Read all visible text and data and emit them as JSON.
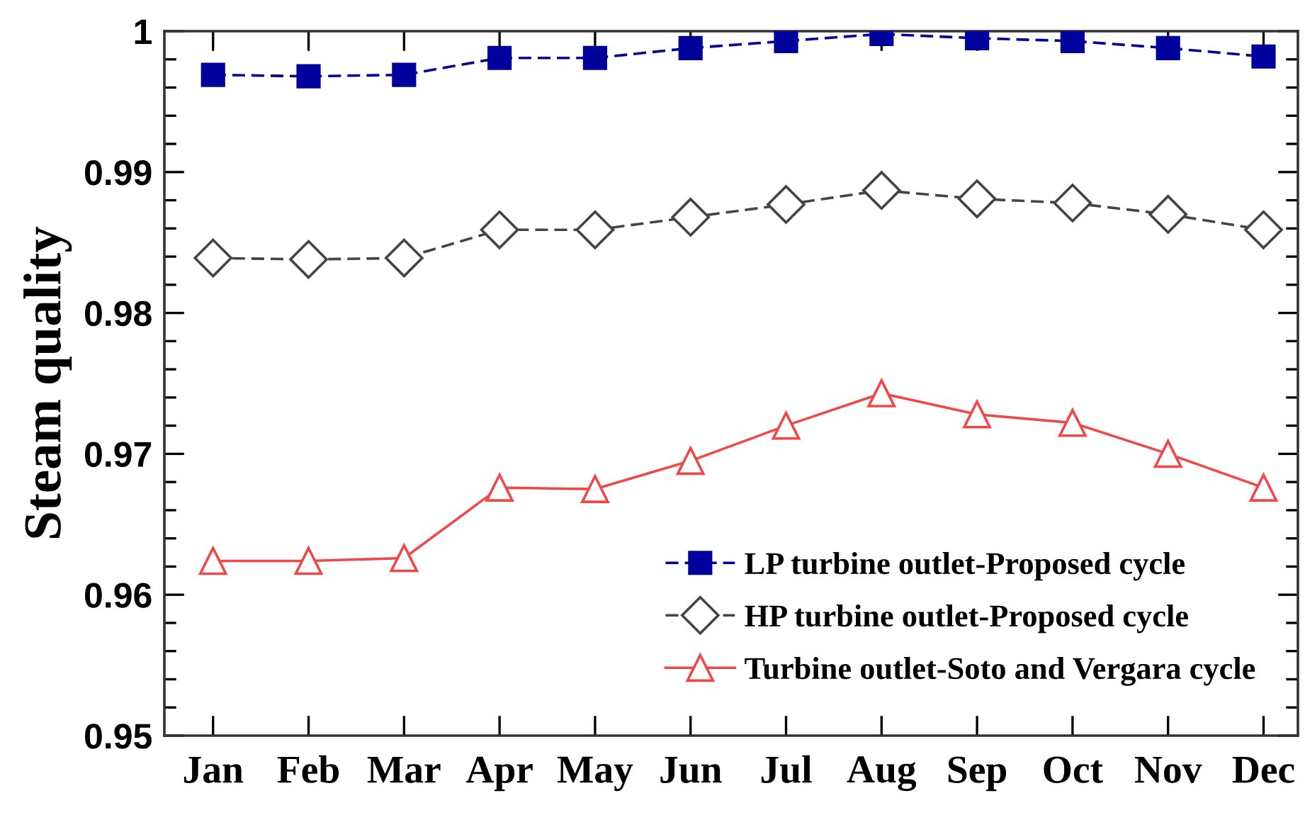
{
  "chart_data": {
    "type": "line",
    "ylabel": "Steam quality",
    "categories": [
      "Jan",
      "Feb",
      "Mar",
      "Apr",
      "May",
      "Jun",
      "Jul",
      "Aug",
      "Sep",
      "Oct",
      "Nov",
      "Dec"
    ],
    "ylim": [
      0.95,
      1
    ],
    "yticks": [
      0.95,
      {
        "value": 0.952,
        "label": null
      },
      {
        "value": 0.954,
        "label": null
      },
      {
        "value": 0.956,
        "label": null
      },
      {
        "value": 0.958,
        "label": null
      },
      0.96,
      {
        "value": 0.962,
        "label": null
      },
      {
        "value": 0.964,
        "label": null
      },
      {
        "value": 0.966,
        "label": null
      },
      {
        "value": 0.968,
        "label": null
      },
      0.97,
      {
        "value": 0.972,
        "label": null
      },
      {
        "value": 0.974,
        "label": null
      },
      {
        "value": 0.976,
        "label": null
      },
      {
        "value": 0.978,
        "label": null
      },
      0.98,
      {
        "value": 0.982,
        "label": null
      },
      {
        "value": 0.984,
        "label": null
      },
      {
        "value": 0.986,
        "label": null
      },
      {
        "value": 0.988,
        "label": null
      },
      0.99,
      {
        "value": 0.992,
        "label": null
      },
      {
        "value": 0.994,
        "label": null
      },
      {
        "value": 0.996,
        "label": null
      },
      {
        "value": 0.998,
        "label": null
      },
      1
    ],
    "legend": "bottom right",
    "series": [
      {
        "name": "LP turbine outlet-Proposed cycle",
        "color": "#00009c",
        "marker": "square",
        "line_style": "dashed",
        "values": [
          0.9969,
          0.9968,
          0.9969,
          0.9981,
          0.9981,
          0.9988,
          0.9993,
          0.9998,
          0.9995,
          0.9993,
          0.9988,
          0.9982
        ]
      },
      {
        "name": "HP turbine outlet-Proposed cycle",
        "color": "#444444",
        "marker": "diamond",
        "line_style": "dashed",
        "values": [
          0.9839,
          0.9838,
          0.9839,
          0.9859,
          0.9859,
          0.9868,
          0.9877,
          0.9887,
          0.9881,
          0.9878,
          0.987,
          0.9859
        ]
      },
      {
        "name": "Turbine outlet-Soto and Vergara cycle",
        "color": "#f04848",
        "marker": "triangle",
        "line_style": "solid",
        "values": [
          0.9624,
          0.9624,
          0.9626,
          0.9676,
          0.9675,
          0.9695,
          0.972,
          0.9743,
          0.9728,
          0.9722,
          0.97,
          0.9676
        ]
      }
    ]
  }
}
